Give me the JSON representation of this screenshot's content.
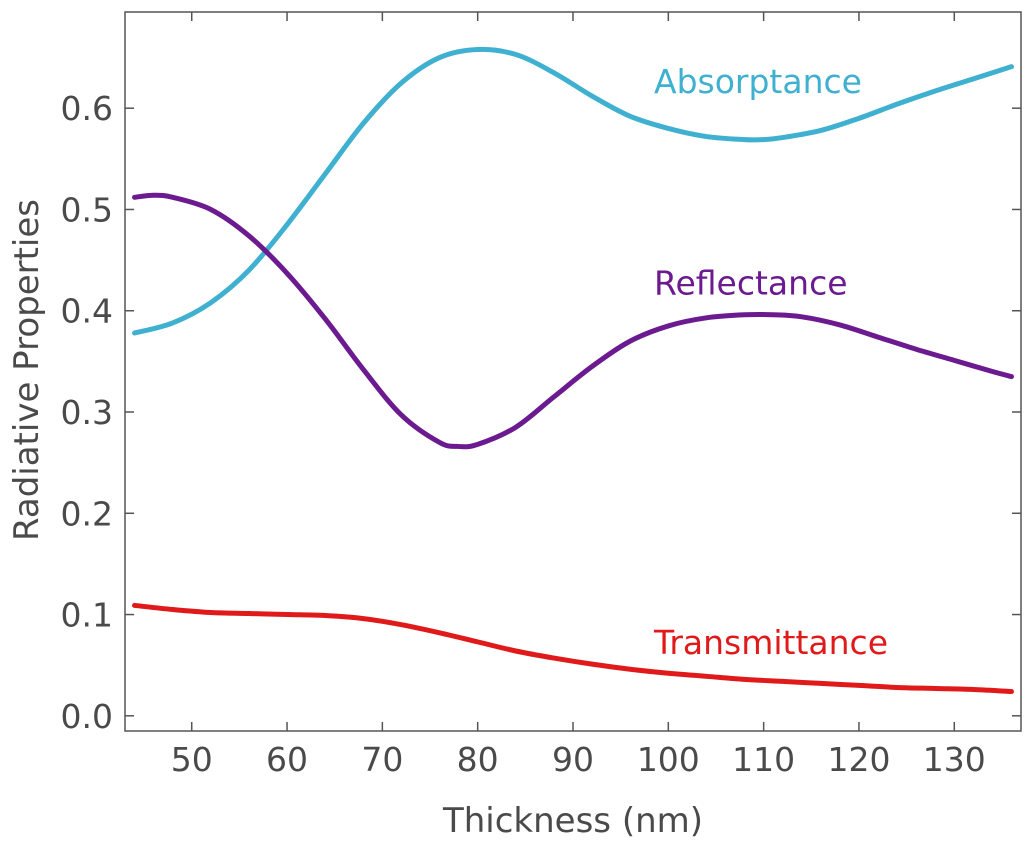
{
  "chart_data": {
    "type": "line",
    "title": "",
    "xlabel": "Thickness (nm)",
    "ylabel": "Radiative Properties",
    "xlim": [
      43,
      137
    ],
    "ylim": [
      -0.015,
      0.695
    ],
    "xticks": [
      50,
      60,
      70,
      80,
      90,
      100,
      110,
      120,
      130
    ],
    "xtick_labels": [
      "50",
      "60",
      "70",
      "80",
      "90",
      "100",
      "110",
      "120",
      "130"
    ],
    "yticks": [
      0.0,
      0.1,
      0.2,
      0.3,
      0.4,
      0.5,
      0.6
    ],
    "ytick_labels": [
      "0.0",
      "0.1",
      "0.2",
      "0.3",
      "0.4",
      "0.5",
      "0.6"
    ],
    "grid": false,
    "legend": "inline-labels",
    "series": [
      {
        "name": "Absorptance",
        "color": "#3fb0d0",
        "label_at": [
          98.5,
          0.627
        ],
        "x": [
          44,
          48,
          52,
          56,
          60,
          64,
          68,
          72,
          76,
          80,
          84,
          88,
          92,
          96,
          100,
          104,
          108,
          110,
          112,
          116,
          120,
          124,
          128,
          132,
          136
        ],
        "y": [
          0.378,
          0.388,
          0.408,
          0.44,
          0.485,
          0.535,
          0.585,
          0.625,
          0.65,
          0.658,
          0.653,
          0.635,
          0.612,
          0.592,
          0.58,
          0.572,
          0.569,
          0.569,
          0.571,
          0.578,
          0.59,
          0.604,
          0.617,
          0.629,
          0.641
        ]
      },
      {
        "name": "Reflectance",
        "color": "#6b1a8f",
        "label_at": [
          98.5,
          0.428
        ],
        "x": [
          44,
          46,
          48,
          52,
          56,
          60,
          64,
          68,
          72,
          76,
          78,
          80,
          84,
          88,
          92,
          96,
          100,
          104,
          108,
          111,
          114,
          118,
          122,
          126,
          130,
          134,
          136
        ],
        "y": [
          0.512,
          0.514,
          0.512,
          0.5,
          0.474,
          0.437,
          0.392,
          0.342,
          0.297,
          0.27,
          0.266,
          0.268,
          0.285,
          0.315,
          0.345,
          0.37,
          0.385,
          0.393,
          0.396,
          0.396,
          0.394,
          0.386,
          0.374,
          0.362,
          0.351,
          0.34,
          0.335
        ]
      },
      {
        "name": "Transmittance",
        "color": "#e01a1a",
        "label_at": [
          98.5,
          0.073
        ],
        "x": [
          44,
          48,
          52,
          56,
          60,
          64,
          68,
          72,
          76,
          80,
          84,
          88,
          92,
          96,
          100,
          104,
          108,
          112,
          116,
          120,
          124,
          128,
          132,
          136
        ],
        "y": [
          0.109,
          0.105,
          0.102,
          0.101,
          0.1,
          0.099,
          0.096,
          0.09,
          0.082,
          0.073,
          0.064,
          0.057,
          0.051,
          0.046,
          0.042,
          0.039,
          0.036,
          0.034,
          0.032,
          0.03,
          0.028,
          0.027,
          0.026,
          0.024
        ]
      }
    ]
  }
}
